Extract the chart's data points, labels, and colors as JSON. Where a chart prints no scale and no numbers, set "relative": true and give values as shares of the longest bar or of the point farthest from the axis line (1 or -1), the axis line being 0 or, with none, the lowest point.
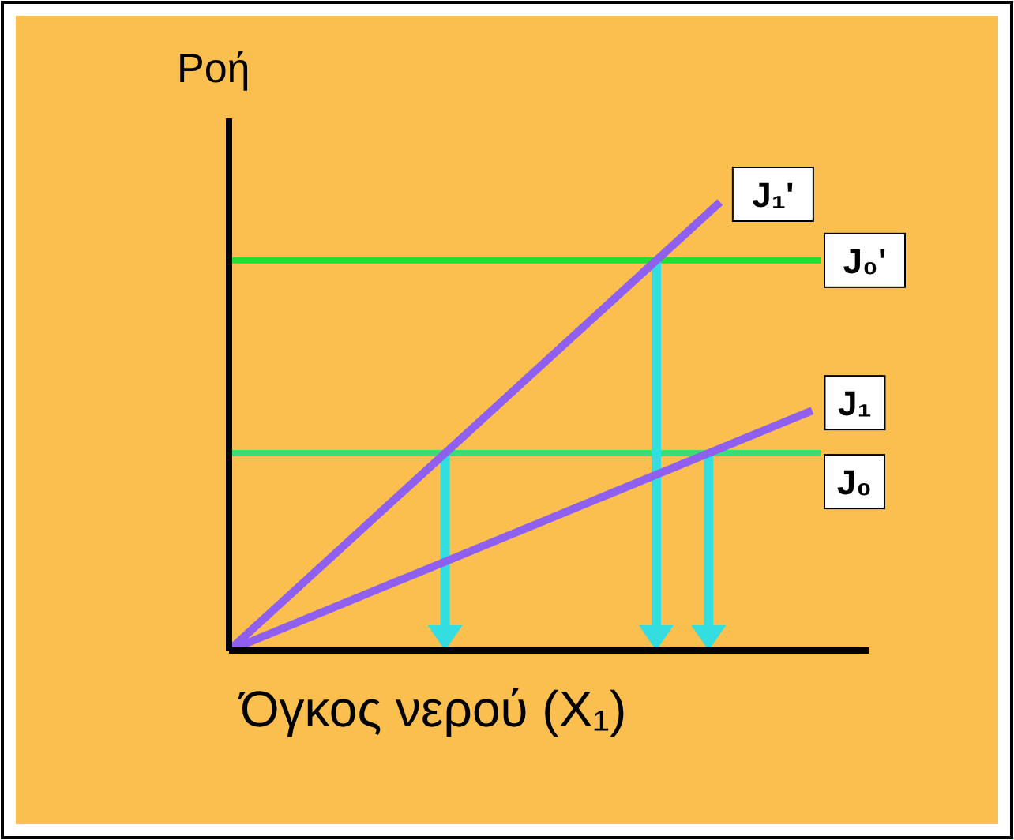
{
  "chart_data": {
    "type": "line",
    "relative": true,
    "ylabel": "Ροή",
    "xlabel": "Όγκος νερού (X₁)",
    "categories": [
      null,
      null,
      null,
      null,
      null,
      null,
      null,
      null,
      null,
      null,
      null,
      null,
      null,
      null,
      null,
      null,
      null,
      null,
      null,
      null,
      null
    ],
    "series": [
      {
        "name": "J₁'",
        "color": "#8f5ff0",
        "values": [
          0,
          null,
          null,
          null,
          null,
          null,
          null,
          null,
          null,
          null,
          null,
          null,
          null,
          null,
          null,
          null,
          1,
          null,
          null,
          null,
          null
        ]
      },
      {
        "name": "J₁",
        "color": "#8f5ff0",
        "values": [
          0,
          null,
          null,
          null,
          null,
          null,
          null,
          null,
          null,
          null,
          null,
          null,
          null,
          null,
          null,
          null,
          null,
          null,
          null,
          0.535,
          null
        ]
      }
    ],
    "ref_lines": [
      {
        "axis": "y",
        "value": 0.87,
        "label": "J₀'",
        "color": "#22dd33"
      },
      {
        "axis": "y",
        "value": 0.44,
        "label": "J₀",
        "color": "#33e07a"
      }
    ],
    "marker": "none",
    "line_style": "solid"
  }
}
